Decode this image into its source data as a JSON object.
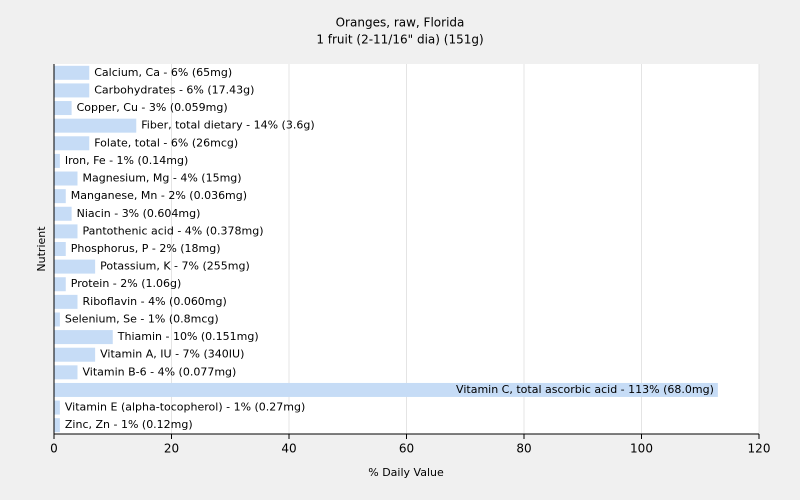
{
  "chart_data": {
    "type": "bar",
    "orientation": "horizontal",
    "title": "Oranges, raw, Florida",
    "subtitle": "1 fruit (2-11/16\" dia) (151g)",
    "x_label": "% Daily Value",
    "y_label": "Nutrient",
    "categories": [
      "Calcium, Ca - 6% (65mg)",
      "Carbohydrates - 6% (17.43g)",
      "Copper, Cu - 3% (0.059mg)",
      "Fiber, total dietary - 14% (3.6g)",
      "Folate, total - 6% (26mcg)",
      "Iron, Fe - 1% (0.14mg)",
      "Magnesium, Mg - 4% (15mg)",
      "Manganese, Mn - 2% (0.036mg)",
      "Niacin - 3% (0.604mg)",
      "Pantothenic acid - 4% (0.378mg)",
      "Phosphorus, P - 2% (18mg)",
      "Potassium, K - 7% (255mg)",
      "Protein - 2% (1.06g)",
      "Riboflavin - 4% (0.060mg)",
      "Selenium, Se - 1% (0.8mcg)",
      "Thiamin - 10% (0.151mg)",
      "Vitamin A, IU - 7% (340IU)",
      "Vitamin B-6 - 4% (0.077mg)",
      "Vitamin C, total ascorbic acid - 113% (68.0mg)",
      "Vitamin E (alpha-tocopherol) - 1% (0.27mg)",
      "Zinc, Zn - 1% (0.12mg)"
    ],
    "values": [
      6,
      6,
      3,
      14,
      6,
      1,
      4,
      2,
      3,
      4,
      2,
      7,
      2,
      4,
      1,
      10,
      7,
      4,
      113,
      1,
      1
    ],
    "color": "#c6dcf6",
    "xlim": [
      0,
      120
    ],
    "xticks": [
      0,
      20,
      40,
      60,
      80,
      100,
      120
    ],
    "grid": true
  }
}
